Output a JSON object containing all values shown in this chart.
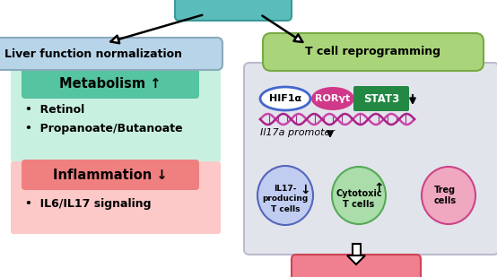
{
  "bg_color": "#ffffff",
  "top_pill_color": "#5bbcbc",
  "top_pill_edge": "#3a9999",
  "liver_box_color": "#b8d4e8",
  "liver_box_edge": "#8aaabb",
  "liver_text": "Liver function normalization",
  "tcell_pill_color": "#aad47a",
  "tcell_pill_edge": "#77aa44",
  "tcell_text": "T cell reprogramming",
  "metabolism_header_color": "#55c4a0",
  "metabolism_bg_color": "#c8f0e0",
  "metabolism_text": "Metabolism ↑",
  "metabolism_items": [
    "Retinol",
    "Propanoate/Butanoate"
  ],
  "inflammation_header_color": "#f08080",
  "inflammation_bg_color": "#fcc8c8",
  "inflammation_text": "Inflammation ↓",
  "inflammation_items": [
    "IL6/IL17 signaling"
  ],
  "right_box_bg": "#e2e4ec",
  "right_box_edge": "#bbbbcc",
  "hif1a_color": "#ffffff",
  "hif1a_edge": "#4466cc",
  "roryt_color": "#d0388a",
  "stat3_color": "#228844",
  "il17_circle_color": "#c0ccf0",
  "il17_circle_edge": "#5566bb",
  "cyto_circle_color": "#aaddaa",
  "cyto_circle_edge": "#55aa55",
  "treg_circle_color": "#f0a8c0",
  "treg_circle_edge": "#cc4488",
  "dna_color1": "#cc44aa",
  "dna_color2": "#aa2288"
}
